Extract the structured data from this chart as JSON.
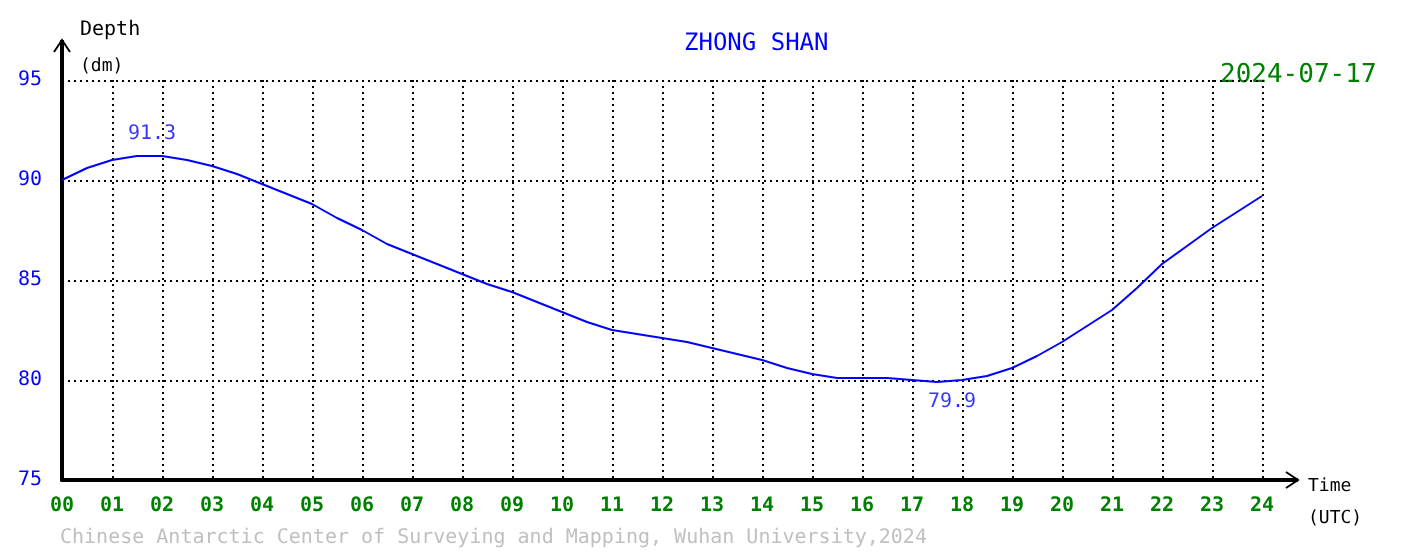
{
  "chart_data": {
    "type": "line",
    "title": "ZHONG SHAN",
    "subtitle": "2024-07-17",
    "xlabel": "Time (UTC)",
    "ylabel": "Depth (dm)",
    "annotations": [
      {
        "text": "91.3",
        "x": 1.8,
        "y": 91.3
      },
      {
        "text": "79.9",
        "x": 17.8,
        "y": 79.9
      },
      "Chinese Antarctic Center of Surveying and Mapping, Wuhan University,2024"
    ],
    "x": [
      0,
      0.5,
      1,
      1.5,
      2,
      2.5,
      3,
      3.5,
      4,
      4.5,
      5,
      5.5,
      6,
      6.5,
      7,
      7.5,
      8,
      8.5,
      9,
      9.5,
      10,
      10.5,
      11,
      11.5,
      12,
      12.5,
      13,
      13.5,
      14,
      14.5,
      15,
      15.5,
      16,
      16.5,
      17,
      17.5,
      18,
      18.5,
      19,
      19.5,
      20,
      20.5,
      21,
      21.5,
      22,
      22.5,
      23,
      23.5,
      24
    ],
    "series": [
      {
        "color": "#0000ff",
        "values": [
          90.0,
          90.6,
          91.0,
          91.2,
          91.2,
          91.0,
          90.7,
          90.3,
          89.8,
          89.3,
          88.8,
          88.1,
          87.5,
          86.8,
          86.3,
          85.8,
          85.3,
          84.8,
          84.4,
          83.9,
          83.4,
          82.9,
          82.5,
          82.3,
          82.1,
          81.9,
          81.6,
          81.3,
          81.0,
          80.6,
          80.3,
          80.1,
          80.1,
          80.1,
          80.0,
          79.9,
          80.0,
          80.2,
          80.6,
          81.2,
          81.9,
          82.7,
          83.5,
          84.6,
          85.8,
          86.7,
          87.6,
          88.4,
          89.2
        ]
      }
    ],
    "xlim": [
      0,
      24
    ],
    "xticks": [
      {
        "value": 0,
        "label": "00"
      },
      {
        "value": 1,
        "label": "01"
      },
      {
        "value": 2,
        "label": "02"
      },
      {
        "value": 3,
        "label": "03"
      },
      {
        "value": 4,
        "label": "04"
      },
      {
        "value": 5,
        "label": "05"
      },
      {
        "value": 6,
        "label": "06"
      },
      {
        "value": 7,
        "label": "07"
      },
      {
        "value": 8,
        "label": "08"
      },
      {
        "value": 9,
        "label": "09"
      },
      10,
      11,
      12,
      13,
      14,
      15,
      16,
      17,
      18,
      19,
      20,
      21,
      22,
      23,
      24
    ],
    "ylim": [
      75,
      95
    ],
    "yticks": [
      75,
      80,
      85,
      90,
      95
    ],
    "grid": true,
    "line_style": "solid",
    "marker": "none"
  }
}
